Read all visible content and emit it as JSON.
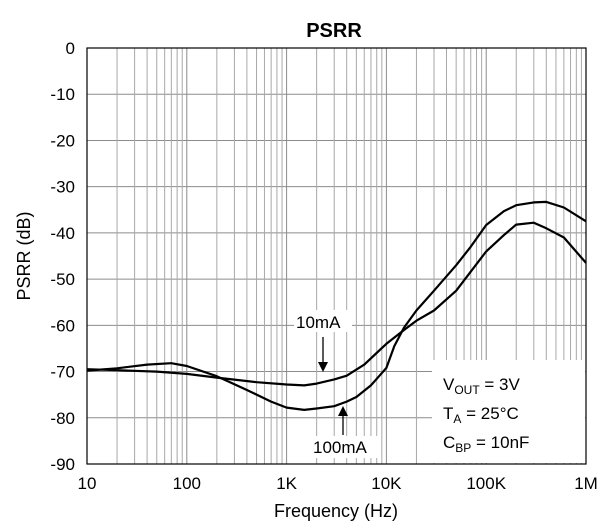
{
  "chart_data": {
    "type": "line",
    "title": "PSRR",
    "xlabel": "Frequency (Hz)",
    "ylabel": "PSRR (dB)",
    "x_scale": "log",
    "xlim": [
      10,
      1000000
    ],
    "ylim": [
      -90,
      0
    ],
    "grid": true,
    "x_ticks": [
      10,
      100,
      1000,
      10000,
      100000,
      1000000
    ],
    "x_tick_labels": [
      "10",
      "100",
      "1K",
      "10K",
      "100K",
      "1M"
    ],
    "y_ticks": [
      0,
      -10,
      -20,
      -30,
      -40,
      -50,
      -60,
      -70,
      -80,
      -90
    ],
    "y_tick_labels": [
      "0",
      "-10",
      "-20",
      "-30",
      "-40",
      "-50",
      "-60",
      "-70",
      "-80",
      "-90"
    ],
    "series": [
      {
        "name": "10mA",
        "x": [
          10,
          20,
          50,
          100,
          200,
          500,
          1000,
          1500,
          2000,
          3000,
          4000,
          6000,
          10000,
          15000,
          20000,
          30000,
          50000,
          100000,
          150000,
          200000,
          300000,
          400000,
          600000,
          1000000
        ],
        "y": [
          -69.5,
          -69.7,
          -70.0,
          -70.5,
          -71.3,
          -72.3,
          -72.8,
          -73.0,
          -72.6,
          -71.7,
          -70.9,
          -68.5,
          -64.0,
          -61.0,
          -59.0,
          -56.8,
          -52.5,
          -44.0,
          -40.5,
          -38.2,
          -37.8,
          -39.0,
          -41.0,
          -46.5
        ]
      },
      {
        "name": "100mA",
        "x": [
          10,
          20,
          40,
          70,
          100,
          200,
          400,
          700,
          1000,
          1500,
          2000,
          3000,
          4000,
          5000,
          7000,
          10000,
          12000,
          15000,
          20000,
          30000,
          50000,
          70000,
          100000,
          150000,
          200000,
          300000,
          400000,
          600000,
          1000000
        ],
        "y": [
          -69.8,
          -69.3,
          -68.5,
          -68.2,
          -68.8,
          -71.0,
          -74.0,
          -76.5,
          -77.8,
          -78.3,
          -78.0,
          -77.5,
          -76.5,
          -75.5,
          -73.0,
          -69.2,
          -64.5,
          -60.5,
          -56.8,
          -52.5,
          -47.0,
          -43.0,
          -38.3,
          -35.3,
          -34.0,
          -33.4,
          -33.3,
          -34.5,
          -37.5
        ]
      }
    ],
    "annotations": {
      "label_10mA": "10mA",
      "label_100mA": "100mA",
      "legend_vout_main": "V",
      "legend_vout_sub": "OUT",
      "legend_vout_rest": " = 3V",
      "legend_ta_main": "T",
      "legend_ta_sub": "A",
      "legend_ta_rest": " = 25°C",
      "legend_cbp_main": "C",
      "legend_cbp_sub": "BP",
      "legend_cbp_rest": " =  10nF"
    }
  }
}
